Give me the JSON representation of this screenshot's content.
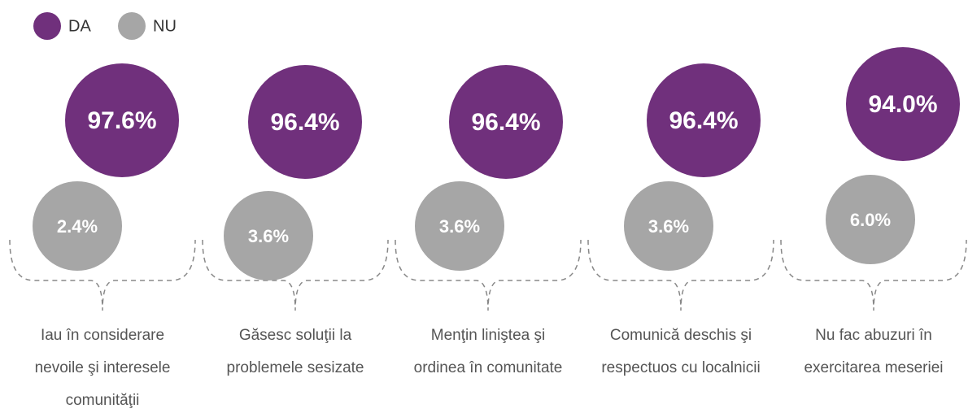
{
  "chart_data": {
    "type": "bubble",
    "categories": [
      "Iau în considerare nevoile şi interesele comunităţii",
      "Găsesc soluţii la problemele sesizate",
      "Menţin liniştea şi ordinea în comunitate",
      "Comunică deschis şi respectuos cu localnicii",
      "Nu fac abuzuri în exercitarea meseriei"
    ],
    "series": [
      {
        "name": "DA",
        "color": "#70307c",
        "values": [
          97.6,
          96.4,
          96.4,
          96.4,
          94.0
        ],
        "value_labels": [
          "97.6%",
          "96.4%",
          "96.4%",
          "96.4%",
          "94.0%"
        ]
      },
      {
        "name": "NU",
        "color": "#a6a6a6",
        "values": [
          2.4,
          3.6,
          3.6,
          3.6,
          6.0
        ],
        "value_labels": [
          "2.4%",
          "3.6%",
          "3.6%",
          "3.6%",
          "6.0%"
        ]
      }
    ],
    "legend": "top-left"
  }
}
